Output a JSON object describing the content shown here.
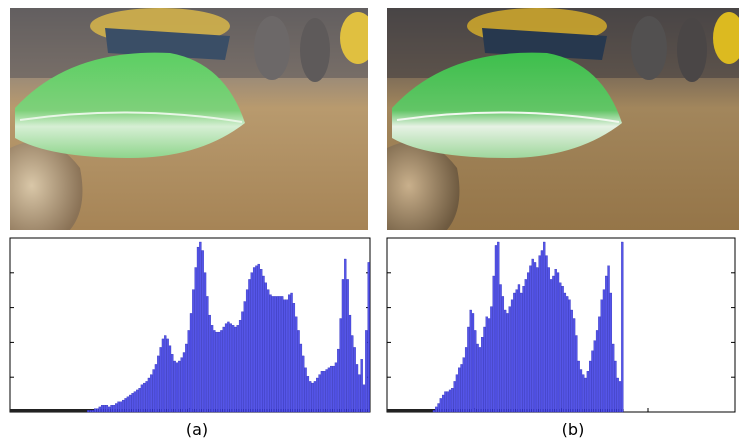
{
  "panels": [
    {
      "caption": "(a)",
      "photo_desc_icon": "leaf-photo-icon",
      "histogram": {
        "bar_color": "#5555e8",
        "values": [
          0,
          0,
          0,
          0,
          0,
          0,
          0,
          0,
          0,
          0,
          0,
          0,
          0,
          0,
          0,
          0,
          0,
          0,
          0,
          0,
          0,
          0,
          0,
          0,
          0,
          0,
          0,
          0,
          0,
          0,
          0,
          0,
          0,
          1,
          1,
          1,
          2,
          2,
          3,
          4,
          4,
          4,
          3,
          4,
          4,
          5,
          6,
          6,
          7,
          8,
          9,
          10,
          11,
          12,
          13,
          14,
          16,
          17,
          18,
          20,
          22,
          25,
          28,
          33,
          38,
          43,
          45,
          43,
          39,
          34,
          30,
          29,
          30,
          32,
          35,
          40,
          48,
          58,
          72,
          85,
          97,
          100,
          95,
          82,
          68,
          57,
          51,
          48,
          47,
          47,
          48,
          50,
          52,
          53,
          52,
          51,
          50,
          51,
          54,
          59,
          65,
          72,
          78,
          82,
          85,
          86,
          87,
          84,
          80,
          76,
          72,
          69,
          68,
          68,
          68,
          68,
          68,
          66,
          66,
          69,
          70,
          64,
          56,
          48,
          40,
          33,
          26,
          21,
          18,
          17,
          18,
          20,
          22,
          24,
          24,
          25,
          26,
          27,
          27,
          29,
          37,
          55,
          78,
          90,
          78,
          57,
          45,
          38,
          28,
          22,
          31,
          16,
          48,
          88
        ]
      }
    },
    {
      "caption": "(b)",
      "photo_desc_icon": "leaf-photo-icon",
      "histogram": {
        "bar_color": "#5555e8",
        "values": [
          0,
          0,
          0,
          0,
          0,
          0,
          0,
          0,
          0,
          0,
          0,
          0,
          0,
          0,
          0,
          0,
          0,
          0,
          0,
          0,
          1,
          3,
          5,
          8,
          10,
          12,
          12,
          13,
          14,
          18,
          22,
          26,
          28,
          32,
          38,
          50,
          60,
          58,
          48,
          40,
          38,
          44,
          50,
          56,
          55,
          62,
          80,
          98,
          100,
          75,
          68,
          60,
          58,
          62,
          66,
          70,
          72,
          75,
          70,
          74,
          78,
          82,
          86,
          90,
          88,
          85,
          92,
          95,
          100,
          92,
          85,
          78,
          80,
          84,
          82,
          76,
          74,
          70,
          68,
          66,
          60,
          55,
          45,
          30,
          25,
          22,
          20,
          24,
          30,
          36,
          42,
          48,
          56,
          66,
          72,
          80,
          86,
          70,
          40,
          30,
          20,
          18,
          100
        ]
      }
    }
  ]
}
